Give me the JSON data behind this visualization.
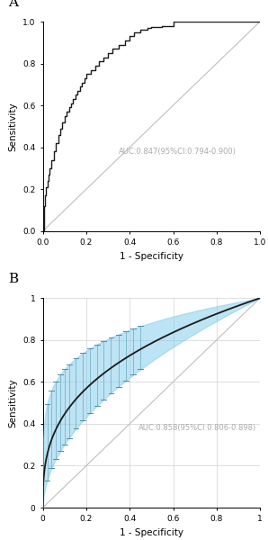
{
  "panel_a_label": "A",
  "panel_b_label": "B",
  "auc_a_text": "AUC:0.847(95%CI:0.794-0.900)",
  "auc_b_text": "AUC:0.858(95%CI:0.806-0.898)",
  "xlabel": "1 - Specificity",
  "ylabel": "Sensitivity",
  "text_color": "#aaaaaa",
  "diagonal_color": "#c0c0c0",
  "roc_color": "#1a1a1a",
  "fill_color": "#87ceeb",
  "fill_alpha": 0.55,
  "grid_color": "#d0d0d0",
  "tick_label_fontsize": 6.5,
  "axis_label_fontsize": 7.5,
  "annotation_fontsize": 6.0,
  "panel_label_fontsize": 11
}
